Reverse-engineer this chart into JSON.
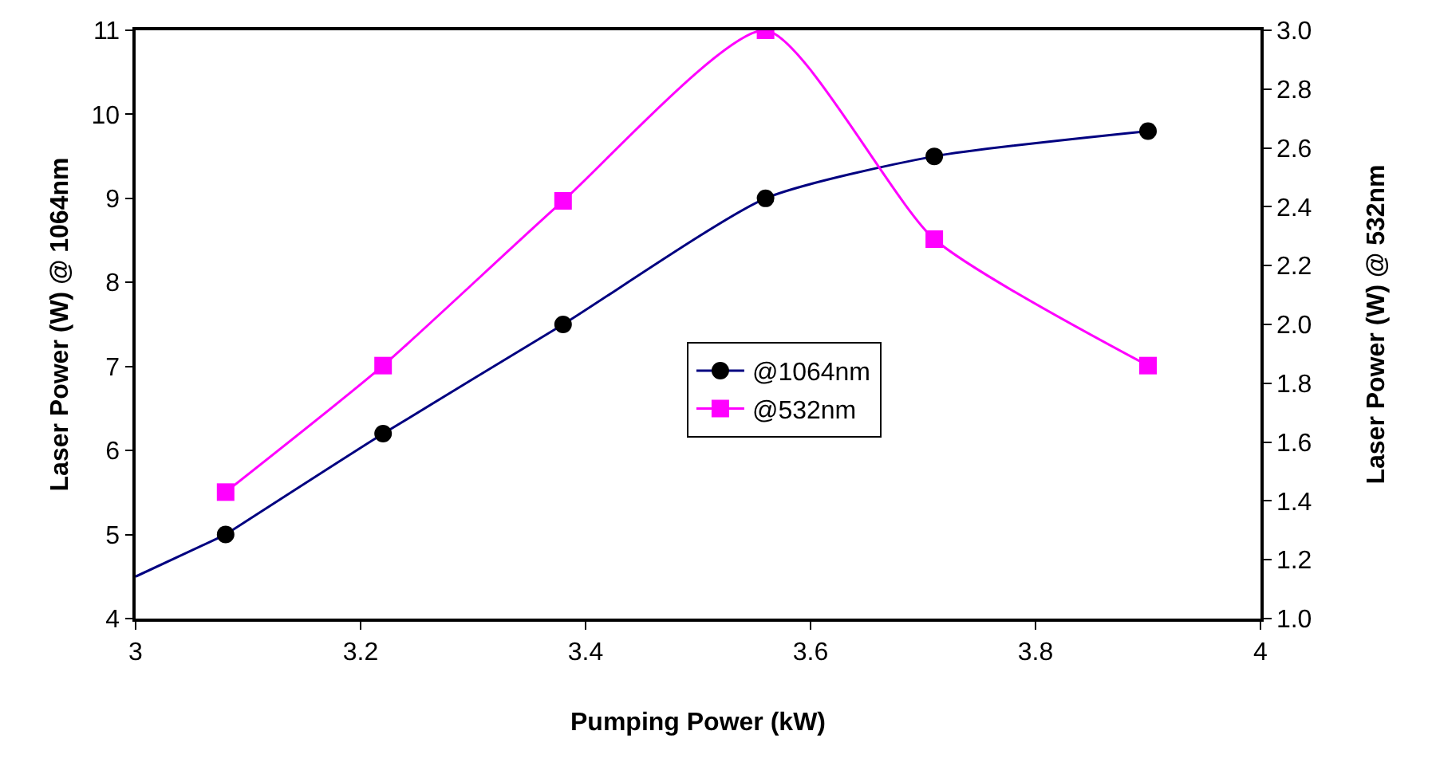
{
  "chart_data": {
    "type": "line",
    "xlabel": "Pumping Power (kW)",
    "ylabel": "Laser Power (W) @ 1064nm",
    "y2label": "Laser Power (W) @ 532nm",
    "xlim": [
      3,
      4
    ],
    "xticks": [
      3,
      3.2,
      3.4,
      3.6,
      3.8,
      4
    ],
    "ylim": [
      4,
      11
    ],
    "yticks": [
      4,
      5,
      6,
      7,
      8,
      9,
      10,
      11
    ],
    "y2lim": [
      1,
      3
    ],
    "y2ticks": [
      {
        "value": 1,
        "label": "1.0"
      },
      1.2,
      1.4,
      1.6,
      1.8,
      {
        "value": 2,
        "label": "2.0"
      },
      2.2,
      2.4,
      2.6,
      2.8,
      {
        "value": 3,
        "label": "3.0"
      }
    ],
    "x": [
      3.08,
      3.22,
      3.38,
      3.56,
      3.71,
      3.9
    ],
    "grid": false,
    "legend": "center right",
    "line_style": "solid",
    "series": [
      {
        "type": "line",
        "color": "#000080",
        "x": [
          3.0,
          3.08
        ],
        "values": [
          4.5,
          5
        ]
      },
      {
        "name": "@1064nm",
        "color": "#000080",
        "values": [
          5,
          6.2,
          7.5,
          9,
          9.5,
          9.8
        ],
        "marker": "circle"
      },
      {
        "name": "@532nm",
        "color": "#ff00ff",
        "values": [
          1.43,
          1.86,
          2.42,
          3.0,
          2.29,
          1.86
        ],
        "marker": "square",
        "axis": "y2"
      }
    ]
  }
}
